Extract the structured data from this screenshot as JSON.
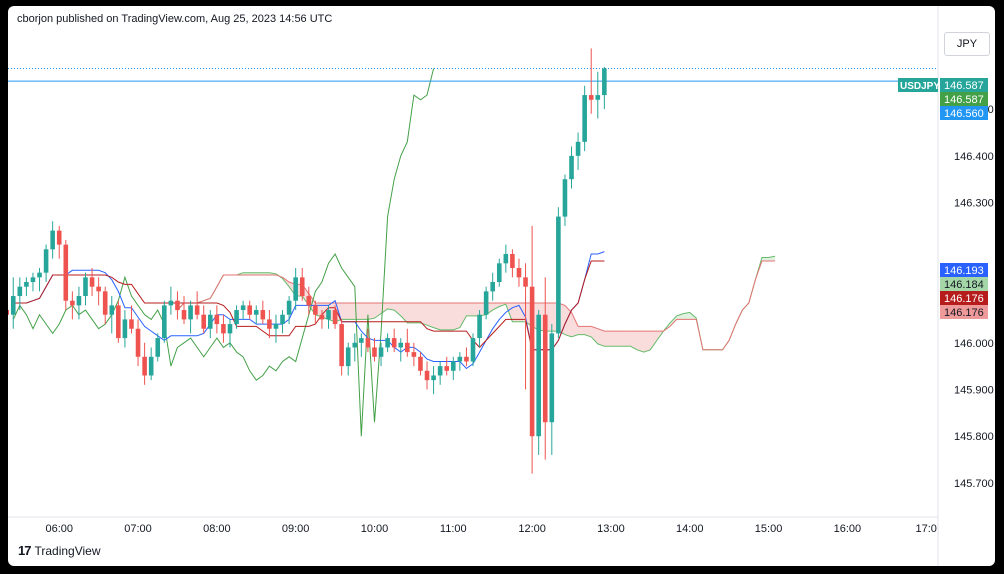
{
  "header": {
    "published_by": "cborjon published on TradingView.com, Aug 25, 2023 14:56 UTC"
  },
  "currency": "JPY",
  "footer": {
    "brand": "TradingView"
  },
  "colors": {
    "bull": "#26a69a",
    "bear": "#ef5350",
    "tenkan": "#2962ff",
    "kijun": "#b71c1c",
    "chikou": "#43a047",
    "cloud_bull": "#a5d6a7",
    "cloud_bear": "#ef9a9a",
    "last_price_line": "#2196f3"
  },
  "chart_data": {
    "type": "candlestick",
    "symbol": "USDJPY",
    "ylim": [
      145.64,
      146.665
    ],
    "y_ticks": [
      "146.500",
      "146.400",
      "146.300",
      "146.000",
      "145.900",
      "145.800",
      "145.700"
    ],
    "x_ticks": [
      "06:00",
      "07:00",
      "08:00",
      "09:00",
      "10:00",
      "11:00",
      "12:00",
      "13:00",
      "14:00",
      "15:00",
      "16:00",
      "17:0"
    ],
    "x_range_hours": [
      5.35,
      17.15
    ],
    "price_labels": [
      {
        "label": "USDJPY",
        "value": "146.587",
        "role": "last"
      },
      {
        "value": "146.587",
        "role": "chikou"
      },
      {
        "value": "146.560",
        "role": "line"
      },
      {
        "value": "146.193",
        "role": "tenkan"
      },
      {
        "value": "146.184",
        "role": "span_a"
      },
      {
        "value": "146.176",
        "role": "kijun"
      },
      {
        "value": "146.176",
        "role": "span_b"
      }
    ],
    "horizontal_line": 146.56,
    "candles_start_hour": 5.3333,
    "candle_interval_minutes": 5,
    "candles": [
      [
        146.07,
        146.1,
        146.04,
        146.06
      ],
      [
        146.06,
        146.14,
        146.03,
        146.1
      ],
      [
        146.1,
        146.14,
        146.07,
        146.12
      ],
      [
        146.12,
        146.14,
        146.1,
        146.13
      ],
      [
        146.13,
        146.15,
        146.11,
        146.14
      ],
      [
        146.14,
        146.16,
        146.11,
        146.15
      ],
      [
        146.15,
        146.21,
        146.13,
        146.2
      ],
      [
        146.2,
        146.26,
        146.18,
        146.24
      ],
      [
        146.24,
        146.25,
        146.18,
        146.21
      ],
      [
        146.21,
        146.22,
        146.07,
        146.09
      ],
      [
        146.09,
        146.11,
        146.05,
        146.08
      ],
      [
        146.08,
        146.12,
        146.05,
        146.1
      ],
      [
        146.1,
        146.15,
        146.08,
        146.14
      ],
      [
        146.14,
        146.16,
        146.1,
        146.12
      ],
      [
        146.12,
        146.14,
        146.08,
        146.11
      ],
      [
        146.11,
        146.12,
        146.04,
        146.06
      ],
      [
        146.06,
        146.1,
        146.02,
        146.08
      ],
      [
        146.08,
        146.09,
        146.0,
        146.01
      ],
      [
        146.01,
        146.07,
        145.99,
        146.05
      ],
      [
        146.05,
        146.08,
        146.02,
        146.03
      ],
      [
        146.03,
        146.05,
        145.95,
        145.97
      ],
      [
        145.97,
        146.0,
        145.91,
        145.93
      ],
      [
        145.93,
        145.99,
        145.92,
        145.97
      ],
      [
        145.97,
        146.02,
        145.96,
        146.01
      ],
      [
        146.01,
        146.09,
        146.0,
        146.08
      ],
      [
        146.08,
        146.12,
        146.06,
        146.09
      ],
      [
        146.09,
        146.11,
        146.05,
        146.07
      ],
      [
        146.07,
        146.1,
        146.04,
        146.05
      ],
      [
        146.05,
        146.09,
        146.02,
        146.08
      ],
      [
        146.08,
        146.11,
        146.05,
        146.06
      ],
      [
        146.06,
        146.08,
        146.02,
        146.03
      ],
      [
        146.03,
        146.07,
        146.01,
        146.06
      ],
      [
        146.06,
        146.08,
        146.02,
        146.04
      ],
      [
        146.04,
        146.06,
        146.0,
        146.02
      ],
      [
        146.02,
        146.05,
        145.99,
        146.04
      ],
      [
        146.04,
        146.08,
        146.03,
        146.07
      ],
      [
        146.07,
        146.09,
        146.05,
        146.08
      ],
      [
        146.08,
        146.09,
        146.05,
        146.06
      ],
      [
        146.06,
        146.08,
        146.04,
        146.07
      ],
      [
        146.07,
        146.09,
        146.04,
        146.05
      ],
      [
        146.05,
        146.07,
        146.01,
        146.03
      ],
      [
        146.03,
        146.06,
        146.0,
        146.04
      ],
      [
        146.04,
        146.07,
        146.02,
        146.06
      ],
      [
        146.06,
        146.1,
        146.04,
        146.09
      ],
      [
        146.09,
        146.16,
        146.07,
        146.14
      ],
      [
        146.14,
        146.16,
        146.09,
        146.1
      ],
      [
        146.1,
        146.12,
        146.06,
        146.08
      ],
      [
        146.08,
        146.09,
        146.04,
        146.06
      ],
      [
        146.06,
        146.07,
        146.03,
        146.05
      ],
      [
        146.05,
        146.08,
        146.03,
        146.07
      ],
      [
        146.07,
        146.08,
        146.03,
        146.04
      ],
      [
        146.04,
        146.05,
        145.93,
        145.95
      ],
      [
        145.95,
        146.0,
        145.93,
        145.99
      ],
      [
        145.99,
        146.02,
        145.96,
        146.0
      ],
      [
        146.0,
        146.02,
        145.97,
        146.01
      ],
      [
        146.01,
        146.03,
        145.98,
        145.99
      ],
      [
        145.99,
        146.01,
        145.96,
        145.97
      ],
      [
        145.97,
        146.0,
        145.95,
        145.99
      ],
      [
        145.99,
        146.02,
        145.98,
        146.01
      ],
      [
        146.01,
        146.03,
        145.98,
        145.99
      ],
      [
        145.99,
        146.01,
        145.96,
        146.0
      ],
      [
        146.0,
        146.03,
        145.97,
        145.98
      ],
      [
        145.98,
        146.0,
        145.95,
        145.97
      ],
      [
        145.97,
        145.98,
        145.93,
        145.94
      ],
      [
        145.94,
        145.96,
        145.9,
        145.92
      ],
      [
        145.92,
        145.95,
        145.89,
        145.93
      ],
      [
        145.93,
        145.96,
        145.91,
        145.95
      ],
      [
        145.95,
        145.97,
        145.93,
        145.94
      ],
      [
        145.94,
        145.97,
        145.92,
        145.96
      ],
      [
        145.96,
        145.98,
        145.94,
        145.97
      ],
      [
        145.97,
        145.99,
        145.95,
        145.96
      ],
      [
        145.96,
        146.02,
        145.95,
        146.01
      ],
      [
        146.01,
        146.07,
        145.99,
        146.06
      ],
      [
        146.06,
        146.12,
        146.05,
        146.11
      ],
      [
        146.11,
        146.15,
        146.09,
        146.13
      ],
      [
        146.13,
        146.18,
        146.12,
        146.17
      ],
      [
        146.17,
        146.21,
        146.15,
        146.19
      ],
      [
        146.19,
        146.2,
        146.14,
        146.16
      ],
      [
        146.16,
        146.18,
        146.12,
        146.14
      ],
      [
        146.14,
        146.17,
        145.9,
        146.12
      ],
      [
        146.12,
        146.25,
        145.72,
        145.8
      ],
      [
        145.8,
        146.07,
        145.76,
        146.06
      ],
      [
        146.06,
        146.14,
        145.75,
        145.83
      ],
      [
        145.83,
        146.04,
        145.76,
        146.02
      ],
      [
        146.02,
        146.29,
        146.01,
        146.27
      ],
      [
        146.27,
        146.36,
        146.25,
        146.35
      ],
      [
        146.35,
        146.42,
        146.33,
        146.4
      ],
      [
        146.4,
        146.45,
        146.37,
        146.43
      ],
      [
        146.43,
        146.55,
        146.41,
        146.53
      ],
      [
        146.53,
        146.63,
        146.49,
        146.52
      ],
      [
        146.52,
        146.58,
        146.48,
        146.53
      ],
      [
        146.53,
        146.59,
        146.5,
        146.587
      ]
    ]
  }
}
